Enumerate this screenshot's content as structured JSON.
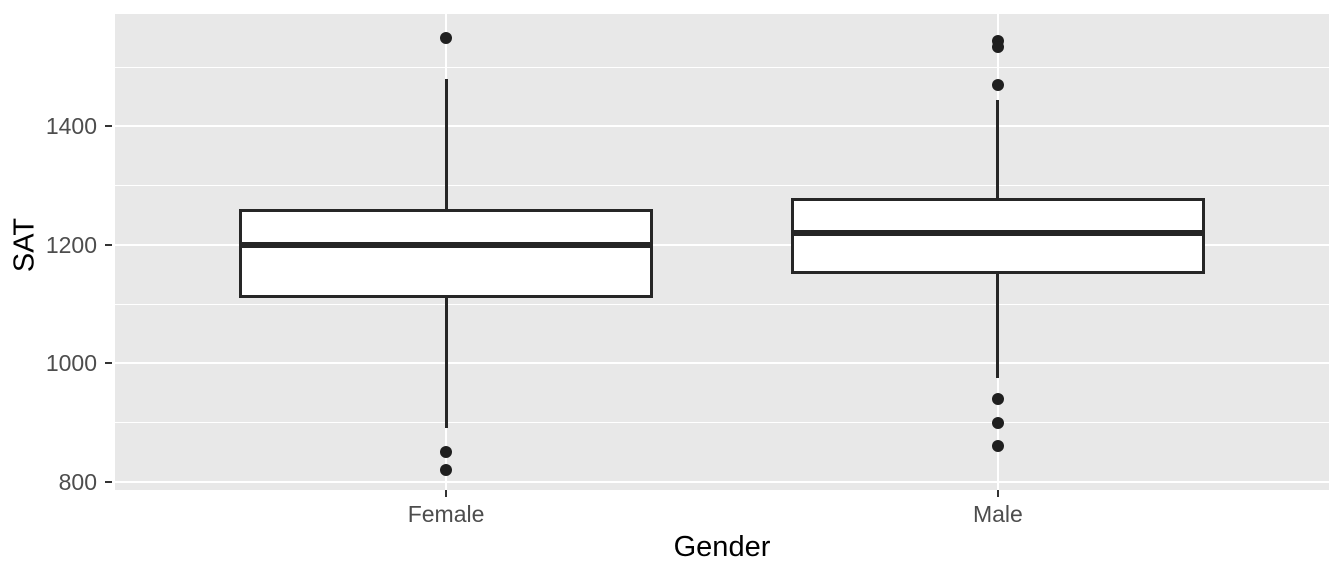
{
  "chart_data": {
    "type": "boxplot",
    "title": "",
    "xlabel": "Gender",
    "ylabel": "SAT",
    "categories": [
      "Female",
      "Male"
    ],
    "y_ticks": [
      800,
      1000,
      1200,
      1400
    ],
    "y_minor_gridlines": [
      900,
      1100,
      1300,
      1500
    ],
    "ylim": [
      786,
      1590
    ],
    "grid": true,
    "legend_position": "none",
    "series": [
      {
        "name": "Female",
        "whisker_low": 890,
        "q1": 1110,
        "median": 1200,
        "q3": 1260,
        "whisker_high": 1480,
        "outliers": [
          1550,
          850,
          820
        ]
      },
      {
        "name": "Male",
        "whisker_low": 975,
        "q1": 1150,
        "median": 1220,
        "q3": 1280,
        "whisker_high": 1445,
        "outliers": [
          1545,
          1535,
          1470,
          940,
          900,
          860
        ]
      }
    ],
    "colors": {
      "panel_bg": "#E8E8E8",
      "grid": "#FFFFFF",
      "box_fill": "#FFFFFF",
      "box_border": "#262626",
      "outlier": "#1F1F1F",
      "tick_mark": "#333333",
      "tick_label": "#4D4D4D",
      "axis_title": "#000000"
    }
  }
}
